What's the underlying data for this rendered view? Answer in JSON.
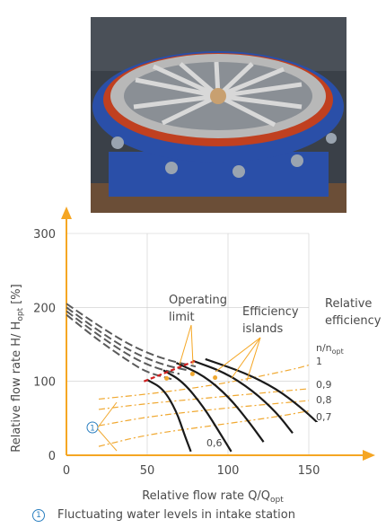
{
  "photo": {
    "subject": "pump-casing-with-guide-vanes"
  },
  "colors": {
    "axis": "#f5a623",
    "curve_black": "#1a1a1a",
    "curve_gray": "#5a5a5a",
    "curve_orange": "#f0a830",
    "limit_red": "#d02020",
    "text": "#4a4a4a",
    "marker": "#2a7fc0",
    "grid": "#cccccc",
    "photo_blue": "#2a4fa8",
    "photo_steel": "#b8b8b8",
    "photo_floor": "#6b4e37"
  },
  "chart_data": {
    "type": "line",
    "xlabel": "Relative flow rate Q/Q",
    "xlabel_sub": "opt",
    "ylabel": "Relative flow rate H/ H",
    "ylabel_sub": "opt",
    "ylabel_suffix": " [%]",
    "xlim": [
      0,
      150
    ],
    "ylim": [
      0,
      300
    ],
    "xticks": [
      "0",
      "50",
      "100",
      "150"
    ],
    "yticks": [
      "0",
      "100",
      "200",
      "300"
    ],
    "grid": true,
    "annotations": {
      "operating_limit": [
        "Operating",
        "limit"
      ],
      "efficiency_islands": [
        "Efficiency",
        "islands"
      ],
      "relative_efficiency": [
        "Relative",
        "efficiency"
      ],
      "efficiency_symbol": "n/n",
      "efficiency_symbol_sub": "opt",
      "marker_1": "1"
    },
    "efficiency_labels": [
      "1",
      "0,9",
      "0,8",
      "0,7"
    ],
    "speed_label": "0,6",
    "system_curves": [
      {
        "points": [
          [
            0,
            205
          ],
          [
            20,
            175
          ],
          [
            40,
            148
          ],
          [
            60,
            130
          ],
          [
            80,
            120
          ]
        ]
      },
      {
        "points": [
          [
            0,
            200
          ],
          [
            20,
            168
          ],
          [
            40,
            140
          ],
          [
            60,
            122
          ],
          [
            75,
            115
          ]
        ]
      },
      {
        "points": [
          [
            0,
            195
          ],
          [
            20,
            162
          ],
          [
            40,
            133
          ],
          [
            55,
            118
          ],
          [
            70,
            110
          ]
        ]
      },
      {
        "points": [
          [
            0,
            190
          ],
          [
            20,
            155
          ],
          [
            40,
            125
          ],
          [
            50,
            112
          ],
          [
            65,
            103
          ]
        ]
      }
    ],
    "pump_curves": [
      {
        "points": [
          [
            50,
            102
          ],
          [
            60,
            90
          ],
          [
            68,
            60
          ],
          [
            73,
            28
          ],
          [
            77,
            5
          ]
        ]
      },
      {
        "points": [
          [
            60,
            115
          ],
          [
            72,
            100
          ],
          [
            85,
            65
          ],
          [
            95,
            30
          ],
          [
            102,
            5
          ]
        ]
      },
      {
        "points": [
          [
            68,
            125
          ],
          [
            85,
            108
          ],
          [
            100,
            80
          ],
          [
            112,
            48
          ],
          [
            122,
            18
          ]
        ]
      },
      {
        "points": [
          [
            78,
            128
          ],
          [
            98,
            112
          ],
          [
            115,
            88
          ],
          [
            130,
            58
          ],
          [
            140,
            30
          ]
        ]
      },
      {
        "points": [
          [
            86,
            130
          ],
          [
            110,
            112
          ],
          [
            130,
            90
          ],
          [
            145,
            65
          ],
          [
            155,
            45
          ]
        ]
      }
    ],
    "efficiency_curves": [
      {
        "label": "1",
        "points": [
          [
            20,
            76
          ],
          [
            60,
            85
          ],
          [
            100,
            98
          ],
          [
            140,
            116
          ],
          [
            150,
            122
          ]
        ]
      },
      {
        "label": "0,9",
        "points": [
          [
            20,
            62
          ],
          [
            50,
            70
          ],
          [
            90,
            78
          ],
          [
            130,
            86
          ],
          [
            150,
            90
          ]
        ]
      },
      {
        "label": "0,8",
        "points": [
          [
            20,
            40
          ],
          [
            50,
            52
          ],
          [
            90,
            62
          ],
          [
            130,
            70
          ],
          [
            150,
            74
          ]
        ]
      },
      {
        "label": "0,7",
        "points": [
          [
            20,
            12
          ],
          [
            50,
            28
          ],
          [
            90,
            40
          ],
          [
            130,
            52
          ],
          [
            150,
            60
          ]
        ]
      }
    ],
    "operating_limit_line": [
      [
        48,
        100
      ],
      [
        80,
        128
      ]
    ],
    "efficiency_points": [
      [
        62,
        104
      ],
      [
        78,
        110
      ],
      [
        92,
        105
      ]
    ]
  },
  "footnote": {
    "marker": "1",
    "text": "Fluctuating water levels in intake station"
  }
}
